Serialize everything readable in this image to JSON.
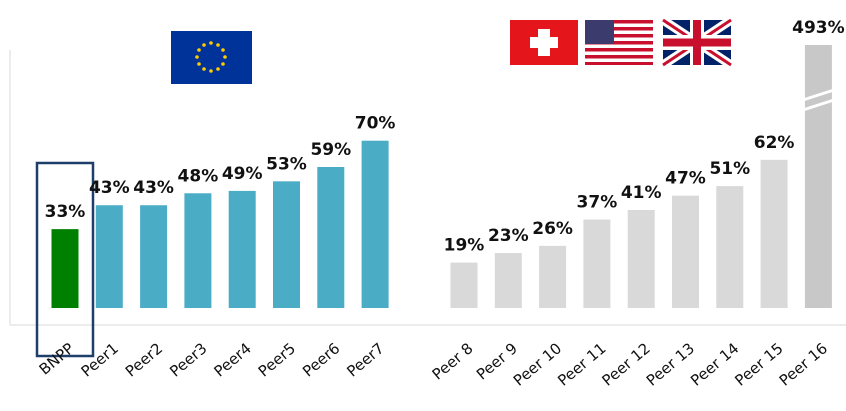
{
  "chart_data": {
    "type": "bar",
    "categories": [
      "BNPP",
      "Peer1",
      "Peer2",
      "Peer3",
      "Peer4",
      "Peer5",
      "Peer6",
      "Peer7",
      "Peer 8",
      "Peer 9",
      "Peer 10",
      "Peer 11",
      "Peer 12",
      "Peer 13",
      "Peer 14",
      "Peer 15",
      "Peer 16"
    ],
    "values": [
      33,
      43,
      43,
      48,
      49,
      53,
      59,
      70,
      19,
      23,
      26,
      37,
      41,
      47,
      51,
      62,
      493
    ],
    "value_labels": [
      "33%",
      "43%",
      "43%",
      "48%",
      "49%",
      "53%",
      "59%",
      "70%",
      "19%",
      "23%",
      "26%",
      "37%",
      "41%",
      "47%",
      "51%",
      "62%",
      "493%"
    ],
    "colors": [
      "#008000",
      "#4bacc6",
      "#4bacc6",
      "#4bacc6",
      "#4bacc6",
      "#4bacc6",
      "#4bacc6",
      "#4bacc6",
      "#d9d9d9",
      "#d9d9d9",
      "#d9d9d9",
      "#d9d9d9",
      "#d9d9d9",
      "#d9d9d9",
      "#d9d9d9",
      "#d9d9d9",
      "#c8c8c8"
    ]
  }
}
